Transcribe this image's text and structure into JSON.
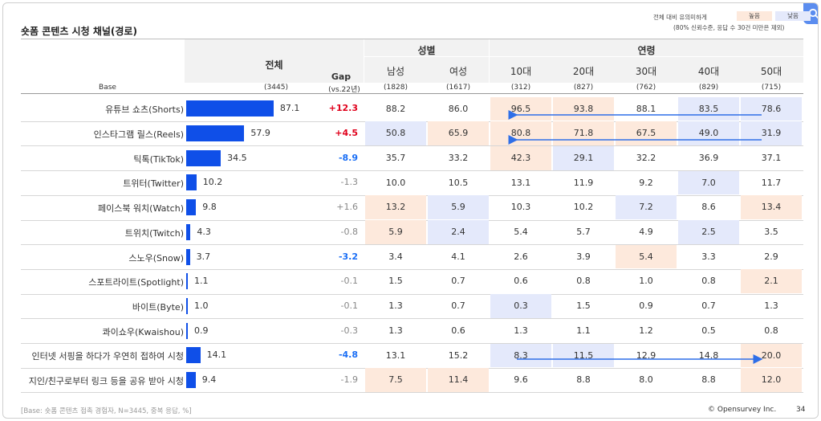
{
  "title": "숏폼 콘텐츠 시청 채널(경로)",
  "legend": {
    "label": "전체 대비 유의미하게",
    "high": "높음",
    "low": "낮음",
    "note": "(80% 신뢰수준, 응답 수 30건 미만은 제외)"
  },
  "colors": {
    "bar": "#0f4fe8",
    "high": "#fde9dc",
    "low": "#e4e9fb",
    "gap_positive": "#e0001b",
    "gap_negative": "#1a6ef5",
    "arrow": "#2f6fe8"
  },
  "header": {
    "total": "전체",
    "gap": "Gap",
    "gap_sub": "(vs.22년)",
    "gender": "성별",
    "age": "연령",
    "base_label": "Base",
    "total_base": "(3445)",
    "gender_cols": [
      "남성",
      "여성"
    ],
    "gender_bases": [
      "(1828)",
      "(1617)"
    ],
    "age_cols": [
      "10대",
      "20대",
      "30대",
      "40대",
      "50대"
    ],
    "age_bases": [
      "(312)",
      "(827)",
      "(762)",
      "(829)",
      "(715)"
    ]
  },
  "chart_data": {
    "type": "table",
    "title": "숏폼 콘텐츠 시청 채널(경로)",
    "columns": [
      "전체",
      "Gap (vs.22년)",
      "남성",
      "여성",
      "10대",
      "20대",
      "30대",
      "40대",
      "50대"
    ],
    "rows": [
      {
        "label": "유튜브 쇼츠(Shorts)",
        "total": 87.1,
        "total_text": "87.1",
        "gap": "+12.3",
        "gap_sig": "pos",
        "cells": [
          {
            "v": "88.2",
            "h": ""
          },
          {
            "v": "86.0",
            "h": ""
          },
          {
            "v": "96.5",
            "h": "hi"
          },
          {
            "v": "93.8",
            "h": "hi"
          },
          {
            "v": "88.1",
            "h": ""
          },
          {
            "v": "83.5",
            "h": "lo"
          },
          {
            "v": "78.6",
            "h": "lo"
          }
        ]
      },
      {
        "label": "인스타그램 릴스(Reels)",
        "total": 57.9,
        "total_text": "57.9",
        "gap": "+4.5",
        "gap_sig": "pos",
        "cells": [
          {
            "v": "50.8",
            "h": "lo"
          },
          {
            "v": "65.9",
            "h": "hi"
          },
          {
            "v": "80.8",
            "h": "hi"
          },
          {
            "v": "71.8",
            "h": "hi"
          },
          {
            "v": "67.5",
            "h": "hi"
          },
          {
            "v": "49.0",
            "h": "lo"
          },
          {
            "v": "31.9",
            "h": "lo"
          }
        ]
      },
      {
        "label": "틱톡(TikTok)",
        "total": 34.5,
        "total_text": "34.5",
        "gap": "-8.9",
        "gap_sig": "neg",
        "cells": [
          {
            "v": "35.7",
            "h": ""
          },
          {
            "v": "33.2",
            "h": ""
          },
          {
            "v": "42.3",
            "h": "hi"
          },
          {
            "v": "29.1",
            "h": "lo"
          },
          {
            "v": "32.2",
            "h": ""
          },
          {
            "v": "36.9",
            "h": ""
          },
          {
            "v": "37.1",
            "h": ""
          }
        ]
      },
      {
        "label": "트위터(Twitter)",
        "total": 10.2,
        "total_text": "10.2",
        "gap": "-1.3",
        "gap_sig": "",
        "cells": [
          {
            "v": "10.0",
            "h": ""
          },
          {
            "v": "10.5",
            "h": ""
          },
          {
            "v": "13.1",
            "h": ""
          },
          {
            "v": "11.9",
            "h": ""
          },
          {
            "v": "9.2",
            "h": ""
          },
          {
            "v": "7.0",
            "h": "lo"
          },
          {
            "v": "11.7",
            "h": ""
          }
        ]
      },
      {
        "label": "페이스북 워치(Watch)",
        "total": 9.8,
        "total_text": "9.8",
        "gap": "+1.6",
        "gap_sig": "",
        "cells": [
          {
            "v": "13.2",
            "h": "hi"
          },
          {
            "v": "5.9",
            "h": "lo"
          },
          {
            "v": "10.3",
            "h": ""
          },
          {
            "v": "10.2",
            "h": ""
          },
          {
            "v": "7.2",
            "h": "lo"
          },
          {
            "v": "8.6",
            "h": ""
          },
          {
            "v": "13.4",
            "h": "hi"
          }
        ]
      },
      {
        "label": "트위치(Twitch)",
        "total": 4.3,
        "total_text": "4.3",
        "gap": "-0.8",
        "gap_sig": "",
        "cells": [
          {
            "v": "5.9",
            "h": "hi"
          },
          {
            "v": "2.4",
            "h": "lo"
          },
          {
            "v": "5.4",
            "h": ""
          },
          {
            "v": "5.7",
            "h": ""
          },
          {
            "v": "4.9",
            "h": ""
          },
          {
            "v": "2.5",
            "h": "lo"
          },
          {
            "v": "3.5",
            "h": ""
          }
        ]
      },
      {
        "label": "스노우(Snow)",
        "total": 3.7,
        "total_text": "3.7",
        "gap": "-3.2",
        "gap_sig": "neg",
        "cells": [
          {
            "v": "3.4",
            "h": ""
          },
          {
            "v": "4.1",
            "h": ""
          },
          {
            "v": "2.6",
            "h": ""
          },
          {
            "v": "3.9",
            "h": ""
          },
          {
            "v": "5.4",
            "h": "hi"
          },
          {
            "v": "3.3",
            "h": ""
          },
          {
            "v": "2.9",
            "h": ""
          }
        ]
      },
      {
        "label": "스포트라이트(Spotlight)",
        "total": 1.1,
        "total_text": "1.1",
        "gap": "-0.1",
        "gap_sig": "",
        "cells": [
          {
            "v": "1.5",
            "h": ""
          },
          {
            "v": "0.7",
            "h": ""
          },
          {
            "v": "0.6",
            "h": ""
          },
          {
            "v": "0.8",
            "h": ""
          },
          {
            "v": "1.0",
            "h": ""
          },
          {
            "v": "0.8",
            "h": ""
          },
          {
            "v": "2.1",
            "h": "hi"
          }
        ]
      },
      {
        "label": "바이트(Byte)",
        "total": 1.0,
        "total_text": "1.0",
        "gap": "-0.1",
        "gap_sig": "",
        "cells": [
          {
            "v": "1.3",
            "h": ""
          },
          {
            "v": "0.7",
            "h": ""
          },
          {
            "v": "0.3",
            "h": "lo"
          },
          {
            "v": "1.5",
            "h": ""
          },
          {
            "v": "0.9",
            "h": ""
          },
          {
            "v": "0.7",
            "h": ""
          },
          {
            "v": "1.3",
            "h": ""
          }
        ]
      },
      {
        "label": "콰이쇼우(Kwaishou)",
        "total": 0.9,
        "total_text": "0.9",
        "gap": "-0.3",
        "gap_sig": "",
        "cells": [
          {
            "v": "1.3",
            "h": ""
          },
          {
            "v": "0.6",
            "h": ""
          },
          {
            "v": "1.3",
            "h": ""
          },
          {
            "v": "1.1",
            "h": ""
          },
          {
            "v": "1.2",
            "h": ""
          },
          {
            "v": "0.5",
            "h": ""
          },
          {
            "v": "0.8",
            "h": ""
          }
        ]
      },
      {
        "label": "인터넷 서핑을 하다가 우연히 접하여 시청",
        "total": 14.1,
        "total_text": "14.1",
        "gap": "-4.8",
        "gap_sig": "neg",
        "cells": [
          {
            "v": "13.1",
            "h": ""
          },
          {
            "v": "15.2",
            "h": ""
          },
          {
            "v": "8.3",
            "h": "lo"
          },
          {
            "v": "11.5",
            "h": "lo"
          },
          {
            "v": "12.9",
            "h": ""
          },
          {
            "v": "14.8",
            "h": ""
          },
          {
            "v": "20.0",
            "h": "hi"
          }
        ]
      },
      {
        "label": "지인/친구로부터 링크 등을 공유 받아 시청",
        "total": 9.4,
        "total_text": "9.4",
        "gap": "-1.9",
        "gap_sig": "",
        "cells": [
          {
            "v": "7.5",
            "h": "hi"
          },
          {
            "v": "11.4",
            "h": "hi"
          },
          {
            "v": "9.6",
            "h": ""
          },
          {
            "v": "8.8",
            "h": ""
          },
          {
            "v": "8.0",
            "h": ""
          },
          {
            "v": "8.8",
            "h": ""
          },
          {
            "v": "12.0",
            "h": "hi"
          }
        ]
      }
    ]
  },
  "footer": {
    "note": "[Base: 숏폼 콘텐츠 접촉 경험자, N=3445, 중복 응답, %]",
    "brand": "© Opensurvey Inc.",
    "page": "34"
  }
}
